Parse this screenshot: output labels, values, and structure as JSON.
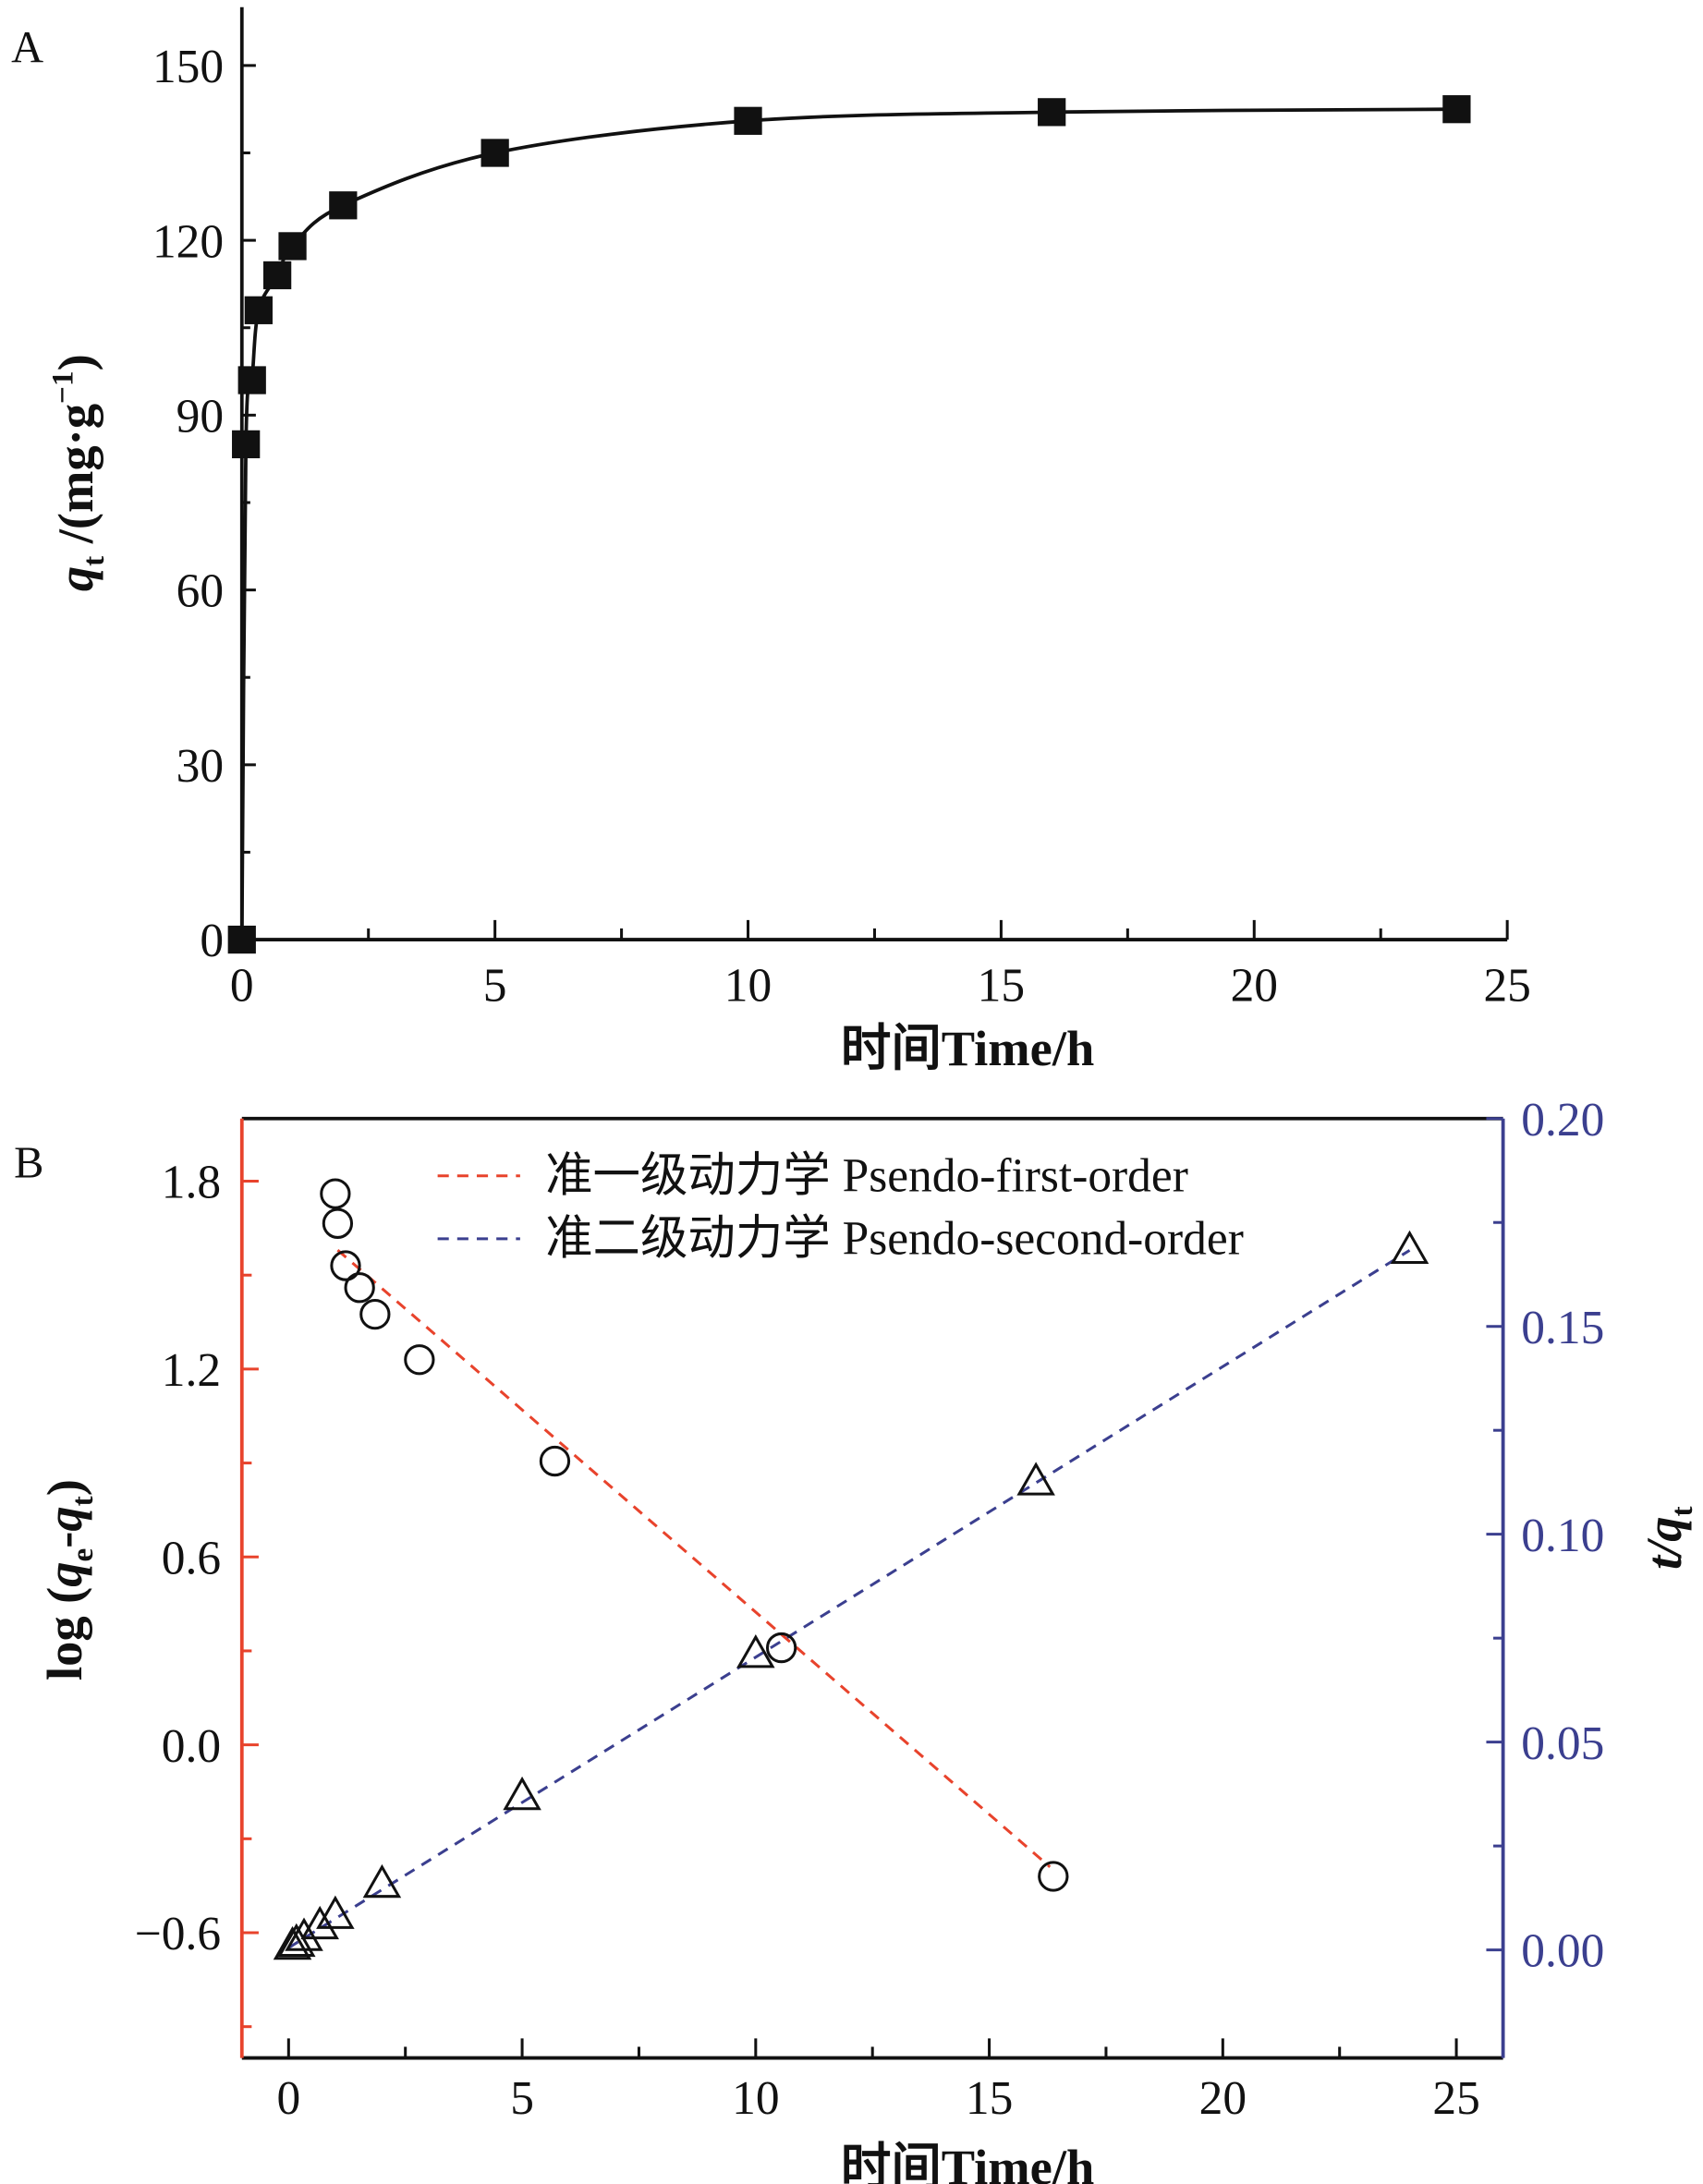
{
  "colors": {
    "red": "#e8432c",
    "blue": "#3b3f8f",
    "black": "#111111"
  },
  "chart_data": [
    {
      "panel": "A",
      "type": "line",
      "title": "",
      "xlabel": "时间Time/h",
      "ylabel": {
        "var": "q",
        "sub": "t",
        "rest": " /(mg·g",
        "sup": "−1",
        "end": ")"
      },
      "xlim": [
        0,
        25
      ],
      "ylim": [
        0,
        160
      ],
      "xticks": [
        0,
        5,
        10,
        15,
        20,
        25
      ],
      "xtick_labels": [
        "0",
        "5",
        "10",
        "15",
        "20",
        "25"
      ],
      "yticks": [
        0,
        30,
        60,
        90,
        120,
        150
      ],
      "ytick_labels": [
        "0",
        "30",
        "60",
        "90",
        "120",
        "150"
      ],
      "series": [
        {
          "name": "qt",
          "marker": "filled-square",
          "x": [
            0,
            0.08,
            0.2,
            0.33,
            0.7,
            1,
            2,
            5,
            10,
            16,
            24
          ],
          "y": [
            0,
            85,
            96,
            108,
            114,
            119,
            126,
            135,
            140.5,
            142,
            142.5
          ]
        }
      ]
    },
    {
      "panel": "B",
      "type": "scatter",
      "title": "",
      "xlabel": "时间Time/h",
      "ylabel_left": {
        "pre": "log (",
        "var1": "q",
        "sub1": "e",
        "mid": "-",
        "var2": "q",
        "sub2": "t",
        "end": ")"
      },
      "ylabel_right": {
        "var": "t/q",
        "sub": "t"
      },
      "xlim": [
        -1,
        26
      ],
      "ylim_left": [
        -1.0,
        2.0
      ],
      "ylim_right": [
        -0.026,
        0.2
      ],
      "xticks": [
        0,
        5,
        10,
        15,
        20,
        25
      ],
      "xtick_labels": [
        "0",
        "5",
        "10",
        "15",
        "20",
        "25"
      ],
      "yticks_left": [
        -0.6,
        0.0,
        0.6,
        1.2,
        1.8
      ],
      "ytick_labels_left": [
        "−0.6",
        "0.0",
        "0.6",
        "1.2",
        "1.8"
      ],
      "yticks_right": [
        0.0,
        0.05,
        0.1,
        0.15,
        0.2
      ],
      "ytick_labels_right": [
        "0.00",
        "0.05",
        "0.10",
        "0.15",
        "0.20"
      ],
      "legend_position": "top",
      "legend": [
        "准一级动力学 Psendo-first-order",
        "准二级动力学 Psendo-second-order"
      ],
      "series": [
        {
          "name": "Psendo-first-order",
          "axis": "left",
          "marker": "open-circle",
          "x": [
            1.0,
            1.05,
            1.22,
            1.52,
            1.85,
            2.8,
            5.7,
            10.55,
            16.37
          ],
          "y": [
            1.76,
            1.665,
            1.53,
            1.46,
            1.375,
            1.23,
            0.906,
            0.31,
            -0.42
          ],
          "fit": {
            "x": [
              1.05,
              16.3
            ],
            "y": [
              1.58,
              -0.39
            ]
          }
        },
        {
          "name": "Psendo-second-order",
          "axis": "right",
          "marker": "open-triangle",
          "x": [
            0.083,
            0.167,
            0.33,
            0.67,
            1,
            2,
            5,
            10,
            16,
            24
          ],
          "y": [
            0.001,
            0.0017,
            0.0031,
            0.0059,
            0.0084,
            0.0159,
            0.037,
            0.0712,
            0.1127,
            0.1684
          ],
          "fit": {
            "x": [
              0,
              24
            ],
            "y": [
              0.0005,
              0.1683
            ]
          }
        }
      ]
    }
  ],
  "panel_labels": [
    "A",
    "B"
  ]
}
